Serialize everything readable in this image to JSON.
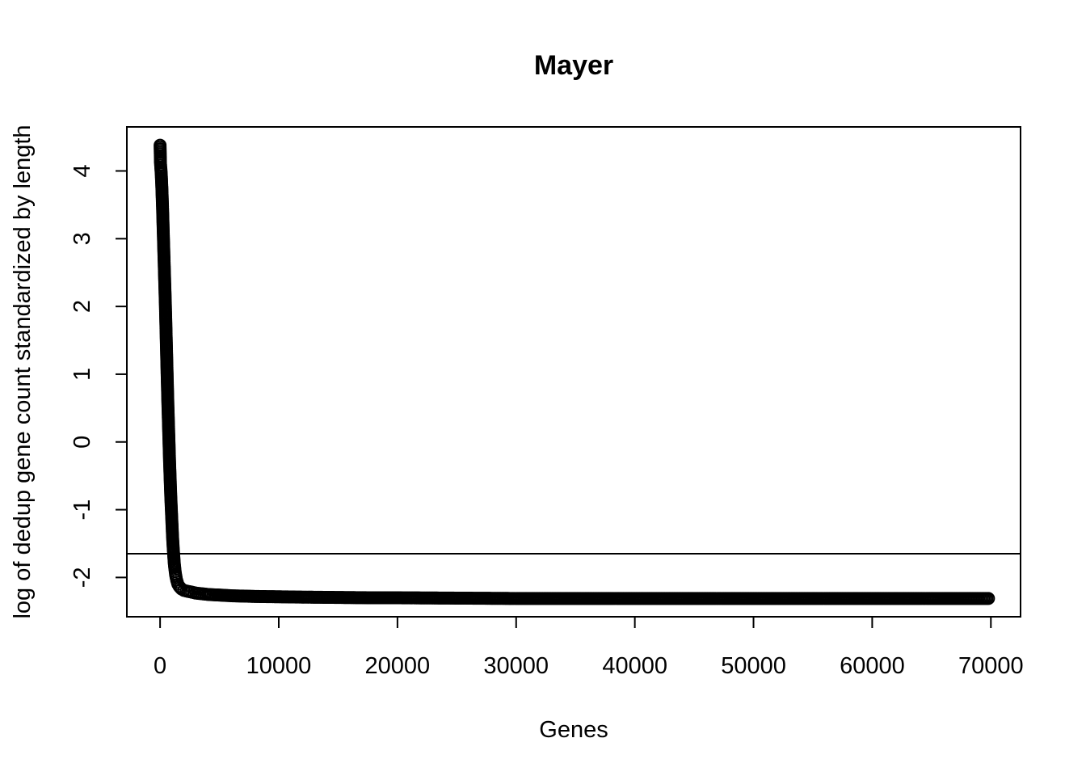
{
  "chart_data": {
    "type": "scatter",
    "title": "Mayer",
    "xlabel": "Genes",
    "ylabel": "log of dedup gene count standardized by length",
    "xlim": [
      -2800,
      72500
    ],
    "ylim": [
      -2.58,
      4.65
    ],
    "x_ticks": [
      0,
      10000,
      20000,
      30000,
      40000,
      50000,
      60000,
      70000
    ],
    "x_tick_labels": [
      "0",
      "10000",
      "20000",
      "30000",
      "40000",
      "50000",
      "60000",
      "70000"
    ],
    "y_ticks": [
      -2,
      -1,
      0,
      1,
      2,
      3,
      4
    ],
    "y_tick_labels": [
      "-2",
      "-1",
      "0",
      "1",
      "2",
      "3",
      "4"
    ],
    "hline": -1.65,
    "grid": false,
    "marker": "open-circle",
    "series": [
      {
        "x": [
          0,
          30,
          60,
          100,
          150,
          200,
          250,
          300,
          350,
          400,
          450,
          500,
          550,
          600,
          650,
          700,
          750,
          800,
          850,
          900,
          950,
          1000,
          1050,
          1100,
          1150,
          1200,
          1250,
          1300,
          1350,
          1400,
          1450,
          1500,
          1600,
          1700,
          1800,
          2000,
          2200,
          2500,
          3000,
          3500,
          4000,
          5000,
          6000,
          7000,
          8000,
          10000,
          12000,
          15000,
          18000,
          20000,
          25000,
          30000,
          35000,
          40000,
          45000,
          50000,
          55000,
          60000,
          65000,
          69800
        ],
        "y": [
          4.38,
          4.12,
          4.05,
          3.95,
          3.75,
          3.5,
          3.2,
          2.9,
          2.6,
          2.3,
          2.0,
          1.65,
          1.3,
          0.95,
          0.6,
          0.3,
          0.0,
          -0.3,
          -0.55,
          -0.8,
          -1.0,
          -1.2,
          -1.4,
          -1.55,
          -1.68,
          -1.8,
          -1.88,
          -1.95,
          -2.0,
          -2.04,
          -2.07,
          -2.1,
          -2.13,
          -2.15,
          -2.17,
          -2.19,
          -2.2,
          -2.21,
          -2.23,
          -2.24,
          -2.25,
          -2.26,
          -2.27,
          -2.275,
          -2.28,
          -2.285,
          -2.29,
          -2.295,
          -2.3,
          -2.3,
          -2.305,
          -2.31,
          -2.31,
          -2.31,
          -2.31,
          -2.31,
          -2.31,
          -2.31,
          -2.31,
          -2.31
        ]
      }
    ]
  }
}
